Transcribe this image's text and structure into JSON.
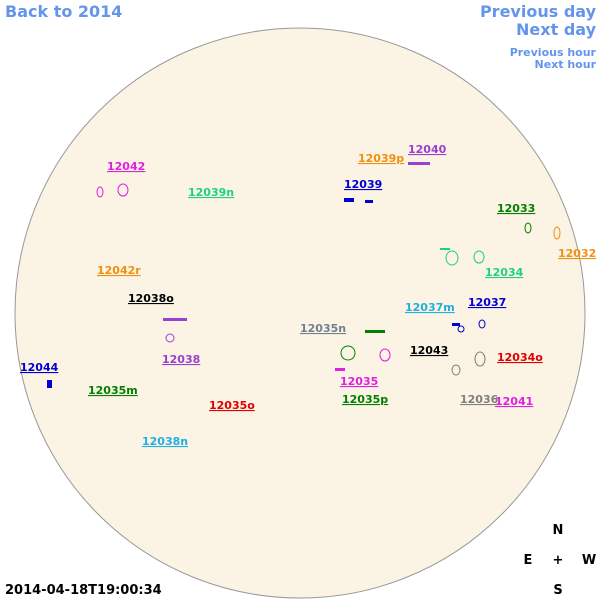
{
  "nav": {
    "back": "Back to 2014",
    "previous_day": "Previous day",
    "next_day": "Next day",
    "previous_hour": "Previous hour",
    "next_hour": "Next hour"
  },
  "timestamp": "2014-04-18T19:00:34",
  "compass": {
    "north": "N",
    "east": "E",
    "center": "+",
    "west": "W",
    "south": "S"
  },
  "regions": [
    {
      "label": "12042",
      "color": "#e020e0"
    },
    {
      "label": "12039n",
      "color": "#20d080"
    },
    {
      "label": "12039p",
      "color": "#f09010"
    },
    {
      "label": "12040",
      "color": "#9a40d0"
    },
    {
      "label": "12039",
      "color": "#0000d0"
    },
    {
      "label": "12033",
      "color": "#008000"
    },
    {
      "label": "12032",
      "color": "#f09010"
    },
    {
      "label": "12034",
      "color": "#20d080"
    },
    {
      "label": "12042r",
      "color": "#f09010"
    },
    {
      "label": "12038o",
      "color": "#000000"
    },
    {
      "label": "12037m",
      "color": "#20b0e0"
    },
    {
      "label": "12037",
      "color": "#0000d0"
    },
    {
      "label": "12035n",
      "color": "#708090"
    },
    {
      "label": "12043",
      "color": "#000000"
    },
    {
      "label": "12034o",
      "color": "#e00000"
    },
    {
      "label": "12038",
      "color": "#9a40d0"
    },
    {
      "label": "12035",
      "color": "#e020e0"
    },
    {
      "label": "12044",
      "color": "#0000d0"
    },
    {
      "label": "12035m",
      "color": "#008000"
    },
    {
      "label": "12035p",
      "color": "#008000"
    },
    {
      "label": "12036",
      "color": "#808080"
    },
    {
      "label": "12041",
      "color": "#e020e0"
    },
    {
      "label": "12035o",
      "color": "#e00000"
    },
    {
      "label": "12038n",
      "color": "#20b0e0"
    }
  ]
}
